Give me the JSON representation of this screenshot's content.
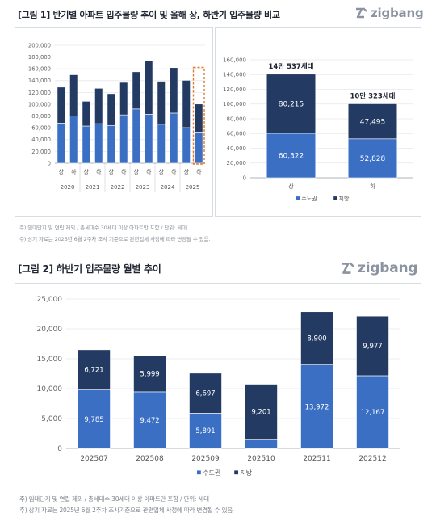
{
  "figure1": {
    "title": "[그림 1] 반기별 아파트 입주물량 추이 및 올해 상, 하반기 입주물량 비교",
    "logo": "zigbang",
    "notes": [
      "주) 임대단지 및 연립 제외 / 총세대수 30세대 이상 아파트만 포함 / 단위: 세대",
      "주) 상기 자료는 2025년 6월 2주차 조사 기준으로 관련업체 사정에 따라 변경될 수 있음."
    ]
  },
  "figure2": {
    "title": "[그림 2] 하반기 입주물량 월별 추이",
    "logo": "zigbang",
    "notes": [
      "주) 임대단지 및 연립 제외 / 총세대수 30세대 이상 아파트만 포함 / 단위: 세대",
      "주) 상기 자료는 2025년 6월 2주차 조사기준으로 관련업체 사정에 따라 변경될 수 있음"
    ]
  },
  "colors": {
    "capital": "#3a6fc4",
    "local": "#233a63",
    "highlight": "#e07a2e",
    "grid": "#e6e8ec"
  },
  "chart_data": [
    {
      "type": "bar",
      "stacked": true,
      "categories": [
        "상",
        "하",
        "상",
        "하",
        "상",
        "하",
        "상",
        "하",
        "상",
        "하",
        "상",
        "하"
      ],
      "year_groups": [
        "2020",
        "2021",
        "2022",
        "2023",
        "2024",
        "2025"
      ],
      "series": [
        {
          "name": "수도권",
          "values": [
            68000,
            80000,
            63000,
            67000,
            64000,
            82000,
            92000,
            83000,
            66000,
            85000,
            60322,
            52828
          ]
        },
        {
          "name": "지방",
          "values": [
            61000,
            70000,
            42000,
            60000,
            54000,
            55000,
            63000,
            91000,
            73000,
            77000,
            80215,
            47495
          ]
        }
      ],
      "ylim": [
        0,
        200000
      ],
      "yticks": [
        "0",
        "20,000",
        "40,000",
        "60,000",
        "80,000",
        "100,000",
        "120,000",
        "140,000",
        "160,000",
        "180,000",
        "200,000"
      ],
      "highlight_index": 11,
      "grid": true,
      "legend": "bottom"
    },
    {
      "type": "bar",
      "stacked": true,
      "categories": [
        "상",
        "하"
      ],
      "totals": [
        "14만 537세대",
        "10만 323세대"
      ],
      "series": [
        {
          "name": "수도권",
          "values": [
            60322,
            52828
          ],
          "labels": [
            "60,322",
            "52,828"
          ]
        },
        {
          "name": "지방",
          "values": [
            80215,
            47495
          ],
          "labels": [
            "80,215",
            "47,495"
          ]
        }
      ],
      "ylim": [
        0,
        160000
      ],
      "yticks": [
        "0",
        "20,000",
        "40,000",
        "60,000",
        "80,000",
        "100,000",
        "120,000",
        "140,000",
        "160,000"
      ],
      "grid": true,
      "legend": "bottom"
    },
    {
      "type": "bar",
      "stacked": true,
      "categories": [
        "202507",
        "202508",
        "202509",
        "202510",
        "202511",
        "202512"
      ],
      "series": [
        {
          "name": "수도권",
          "values": [
            9785,
            9472,
            5891,
            1541,
            13972,
            12167
          ],
          "labels": [
            "9,785",
            "9,472",
            "5,891",
            "1,541",
            "13,972",
            "12,167"
          ]
        },
        {
          "name": "지방",
          "values": [
            6721,
            5999,
            6697,
            9201,
            8900,
            9977
          ],
          "labels": [
            "6,721",
            "5,999",
            "6,697",
            "9,201",
            "8,900",
            "9,977"
          ]
        }
      ],
      "ylim": [
        0,
        25000
      ],
      "yticks": [
        "0",
        "5,000",
        "10,000",
        "15,000",
        "20,000",
        "25,000"
      ],
      "grid": true,
      "legend": "bottom"
    }
  ]
}
